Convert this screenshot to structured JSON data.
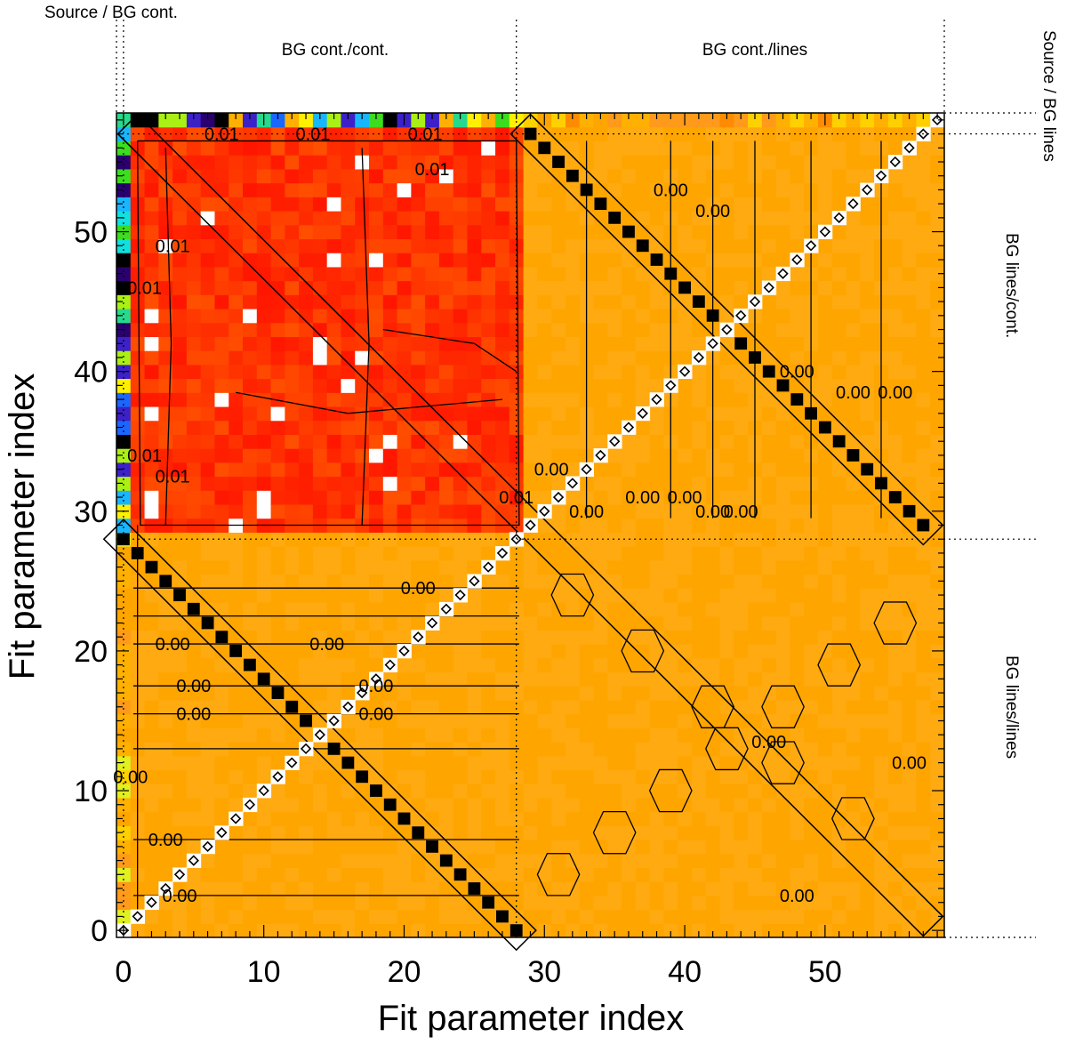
{
  "chart_data": {
    "type": "heatmap",
    "title": "",
    "xlabel": "Fit parameter index",
    "ylabel": "Fit parameter index",
    "xlim": [
      0,
      58
    ],
    "ylim": [
      0,
      58
    ],
    "x_ticks": [
      0,
      10,
      20,
      30,
      40,
      50
    ],
    "y_ticks": [
      0,
      10,
      20,
      30,
      40,
      50
    ],
    "region_labels": {
      "source_bg_cont": "Source / BG cont.",
      "bg_cont_cont": "BG cont./cont.",
      "bg_cont_lines": "BG cont./lines",
      "source_bg_lines": "Source / BG lines",
      "bg_lines_cont": "BG lines/cont.",
      "bg_lines_lines": "BG lines/lines"
    },
    "block_boundaries": [
      0.5,
      28.5,
      57.5
    ],
    "n_parameters": 59,
    "contour_levels": [
      "0.00",
      "0.01"
    ],
    "contour_labels": [
      {
        "text": "0.01",
        "x": 7,
        "y": 57
      },
      {
        "text": "0.01",
        "x": 13.5,
        "y": 57
      },
      {
        "text": "0.01",
        "x": 21.5,
        "y": 57
      },
      {
        "text": "0.01",
        "x": 22,
        "y": 54.5
      },
      {
        "text": "0.01",
        "x": 3.5,
        "y": 49
      },
      {
        "text": "0.01",
        "x": 1.5,
        "y": 46
      },
      {
        "text": "0.01",
        "x": 3.5,
        "y": 32.5
      },
      {
        "text": "0.01",
        "x": 1.5,
        "y": 34
      },
      {
        "text": "0.01",
        "x": 28,
        "y": 31
      },
      {
        "text": "0.00",
        "x": 21,
        "y": 24.5
      },
      {
        "text": "0.00",
        "x": 3.5,
        "y": 20.5
      },
      {
        "text": "0.00",
        "x": 14.5,
        "y": 20.5
      },
      {
        "text": "0.00",
        "x": 5,
        "y": 17.5
      },
      {
        "text": "0.00",
        "x": 18,
        "y": 17.5
      },
      {
        "text": "0.00",
        "x": 5,
        "y": 15.5
      },
      {
        "text": "0.00",
        "x": 18,
        "y": 15.5
      },
      {
        "text": "0.00",
        "x": 3,
        "y": 6.5
      },
      {
        "text": "0.00",
        "x": 4,
        "y": 2.5
      },
      {
        "text": "0.00",
        "x": 46,
        "y": 13.5
      },
      {
        "text": "0.00",
        "x": 48,
        "y": 2.5
      },
      {
        "text": "0.00",
        "x": 30.5,
        "y": 33
      },
      {
        "text": "0.00",
        "x": 33,
        "y": 30
      },
      {
        "text": "0.00",
        "x": 37,
        "y": 31
      },
      {
        "text": "0.00",
        "x": 40,
        "y": 31
      },
      {
        "text": "0.00",
        "x": 42,
        "y": 30
      },
      {
        "text": "0.00",
        "x": 44,
        "y": 30
      },
      {
        "text": "0.00",
        "x": 39,
        "y": 53
      },
      {
        "text": "0.00",
        "x": 42,
        "y": 51.5
      },
      {
        "text": "0.00",
        "x": 48,
        "y": 40
      },
      {
        "text": "0.00",
        "x": 52,
        "y": 38.5
      },
      {
        "text": "0.00",
        "x": 55,
        "y": 38.5
      },
      {
        "text": "0.00",
        "x": 56,
        "y": 12
      },
      {
        "text": "0.00",
        "x": 0.5,
        "y": 11
      }
    ],
    "legend": "none"
  }
}
